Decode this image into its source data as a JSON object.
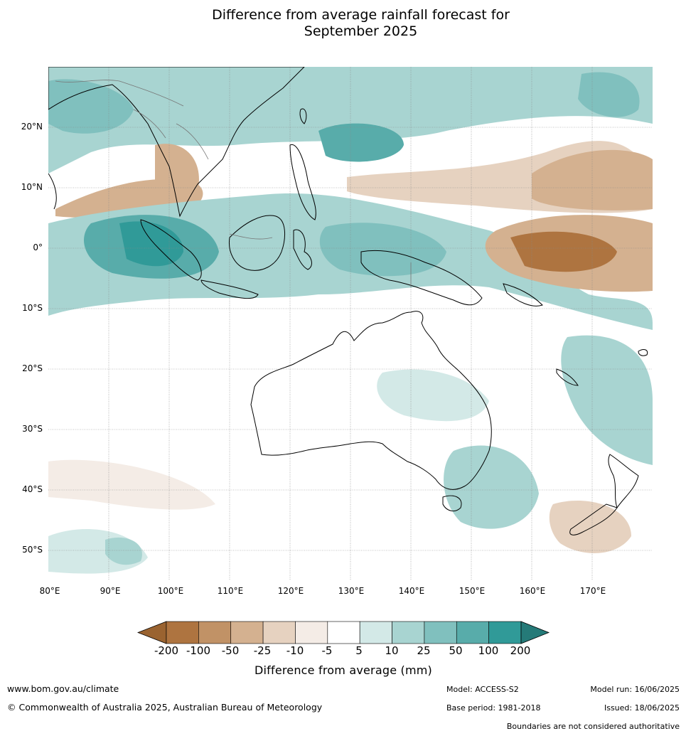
{
  "title_line1": "Difference from average rainfall forecast for",
  "title_line2": "September 2025",
  "map": {
    "lat_labels": [
      "20°N",
      "10°N",
      "0°",
      "10°S",
      "20°S",
      "30°S",
      "40°S",
      "50°S"
    ],
    "lon_labels": [
      "80°E",
      "90°E",
      "100°E",
      "110°E",
      "120°E",
      "130°E",
      "140°E",
      "150°E",
      "160°E",
      "170°E"
    ],
    "extent": {
      "lon_min": 80,
      "lon_max": 180,
      "lat_min": -55,
      "lat_max": 30
    }
  },
  "legend": {
    "label": "Difference from average (mm)",
    "tick_labels": [
      "-200",
      "-100",
      "-50",
      "-25",
      "-10",
      "-5",
      "5",
      "10",
      "25",
      "50",
      "100",
      "200"
    ],
    "colors": [
      "#9a6330",
      "#ae7440",
      "#c19266",
      "#d4b190",
      "#e6d2c0",
      "#f4ece6",
      "#ffffff",
      "#d3e9e7",
      "#a8d4d1",
      "#80c0be",
      "#58acaa",
      "#309a98",
      "#257a78"
    ]
  },
  "footer": {
    "website": "www.bom.gov.au/climate",
    "copyright": "© Commonwealth of Australia 2025, Australian Bureau of Meteorology",
    "model": "Model: ACCESS-S2",
    "base_period": "Base period: 1981-2018",
    "model_run": "Model run: 16/06/2025",
    "issued": "Issued: 18/06/2025",
    "disclaimer": "Boundaries are not considered authoritative"
  }
}
